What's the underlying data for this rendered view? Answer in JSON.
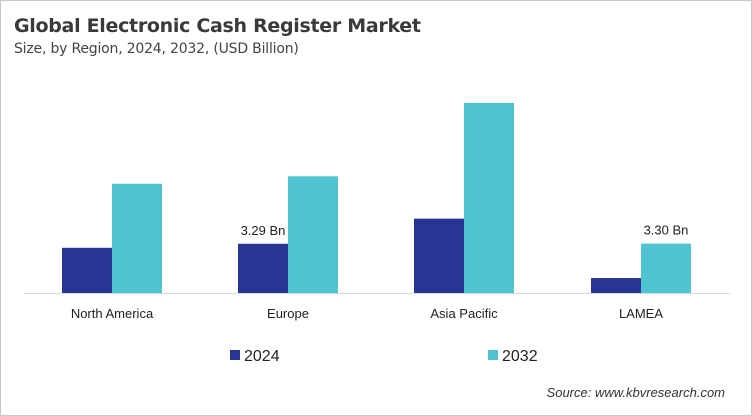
{
  "chart_data": {
    "type": "bar",
    "title": "Global Electronic Cash Register Market",
    "subtitle": "Size, by Region, 2024, 2032, (USD Billion)",
    "categories": [
      "North America",
      "Europe",
      "Asia Pacific",
      "LAMEA"
    ],
    "series": [
      {
        "name": "2024",
        "color": "#283593",
        "values": [
          3.02,
          3.29,
          4.97,
          1.0
        ]
      },
      {
        "name": "2032",
        "color": "#4FC3CF",
        "values": [
          7.3,
          7.8,
          12.7,
          3.3
        ]
      }
    ],
    "data_labels": [
      {
        "series": "2024",
        "category": "Europe",
        "text": "3.29 Bn"
      },
      {
        "series": "2032",
        "category": "LAMEA",
        "text": "3.30 Bn"
      }
    ],
    "ylim": [
      0,
      13.5
    ],
    "grid": false,
    "y_axis_shown": false,
    "legend_placement": "bottom",
    "source": "Source: www.kbvresearch.com"
  }
}
